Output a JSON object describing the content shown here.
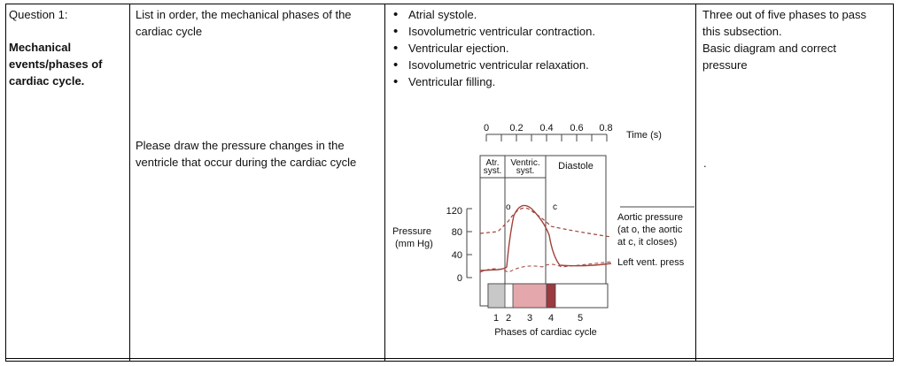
{
  "col1": {
    "question": "Question 1:",
    "topic_lines": [
      "Mechanical",
      "events/phases of",
      "cardiac cycle."
    ]
  },
  "col2": {
    "prompt1": "List in order, the mechanical phases of the cardiac cycle",
    "prompt2": "Please draw the pressure changes in the ventricle that occur during the cardiac cycle"
  },
  "col3": {
    "phases": [
      "Atrial systole.",
      "Isovolumetric ventricular contraction.",
      "Ventricular ejection.",
      "Isovolumetric ventricular relaxation.",
      "Ventricular filling."
    ]
  },
  "col4": {
    "criteria_lines": [
      "Three out of five phases to pass",
      "this subsection.",
      "Basic diagram and correct",
      "pressure"
    ],
    "mark": "."
  },
  "diagram": {
    "time_ticks": [
      "0",
      "0.2",
      "0.4",
      "0.6",
      "0.8"
    ],
    "time_label": "Time (s)",
    "atr_label": [
      "Atr.",
      "syst."
    ],
    "ventric_label": [
      "Ventric.",
      "syst."
    ],
    "diastole_label": "Diastole",
    "pressure_ticks": [
      "120",
      "80",
      "40",
      "0"
    ],
    "pressure_label": [
      "Pressure",
      "(mm Hg)"
    ],
    "point_o": "o",
    "point_c": "c",
    "aortic_label": [
      "Aortic pressure",
      "(at o, the aortic",
      "at c, it closes)"
    ],
    "lv_label": "Left vent. press",
    "phase_numbers": [
      "1",
      "2",
      "3",
      "4",
      "5"
    ],
    "phase_axis_label": "Phases of cardiac cycle",
    "colors": {
      "curve": "#a0433a",
      "atrial_bar": "#c8c8c8",
      "ejection_bar": "#e4a7ab",
      "relax_bar": "#9a3b41"
    }
  }
}
